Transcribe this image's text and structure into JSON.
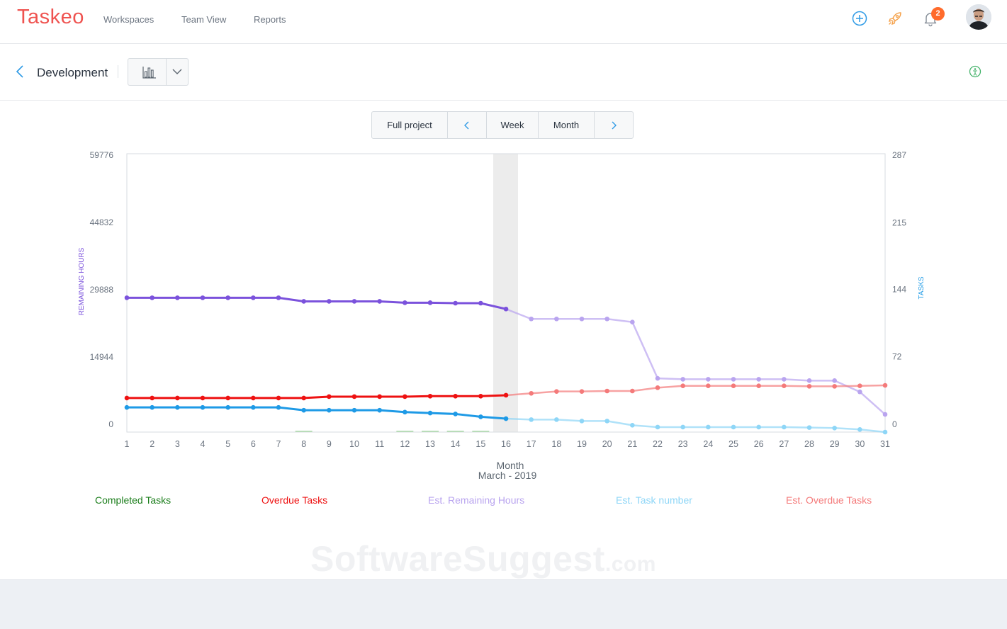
{
  "app": {
    "logo": "Taskeo",
    "nav": [
      "Workspaces",
      "Team View",
      "Reports"
    ],
    "notifications_count": "2"
  },
  "header": {
    "project_title": "Development"
  },
  "range": {
    "full": "Full project",
    "week": "Week",
    "month": "Month"
  },
  "watermark": {
    "main": "SoftwareSuggest",
    "suffix": ".com"
  },
  "colors": {
    "brand": "#ef5350",
    "remaining_hours": "#7b52dc",
    "overdue": "#ee1111",
    "tasks": "#1e9ae6",
    "completed": "#1a7d1a",
    "est_remaining": "#b9a4ef",
    "est_tasks": "#8ed6f7",
    "est_overdue": "#f47a7a",
    "highlight": "#ececec"
  },
  "chart_data": {
    "type": "line",
    "x": [
      1,
      2,
      3,
      4,
      5,
      6,
      7,
      8,
      9,
      10,
      11,
      12,
      13,
      14,
      15,
      16,
      17,
      18,
      19,
      20,
      21,
      22,
      23,
      24,
      25,
      26,
      27,
      28,
      29,
      30,
      31
    ],
    "xlabel": "Month",
    "xsublabel": "March - 2019",
    "left_axis": {
      "label": "REMAINING HOURS",
      "ticks": [
        0,
        14944,
        29888,
        44832,
        59776
      ],
      "range": [
        0,
        59776
      ]
    },
    "right_axis": {
      "label": "TASKS",
      "ticks": [
        0,
        72,
        144,
        215,
        287
      ],
      "range": [
        0,
        287
      ]
    },
    "highlight_day": 16,
    "actual_until": 16,
    "series": [
      {
        "name": "Est. Remaining Hours",
        "axis": "left",
        "values": [
          28100,
          28100,
          28100,
          28100,
          28100,
          28100,
          28100,
          27300,
          27300,
          27300,
          27300,
          27000,
          27000,
          26900,
          26900,
          25600,
          23400,
          23400,
          23400,
          23400,
          22700,
          10200,
          10000,
          10000,
          10000,
          10000,
          10000,
          9700,
          9700,
          7200,
          2200
        ]
      },
      {
        "name": "Overdue Tasks",
        "axis": "right",
        "values": [
          28,
          28,
          28,
          28,
          28,
          28,
          28,
          28,
          29.5,
          29.5,
          29.5,
          29.5,
          30,
          30,
          30,
          31,
          33,
          35,
          35,
          35.5,
          35.5,
          39,
          41,
          41,
          41,
          41,
          41,
          40.5,
          40.5,
          41,
          41.5
        ]
      },
      {
        "name": "Est. Task number",
        "axis": "right",
        "values": [
          18,
          18,
          18,
          18,
          18,
          18,
          18,
          15,
          15,
          15,
          15,
          13,
          12,
          11,
          8,
          6,
          5,
          5,
          3.5,
          3.5,
          -1,
          -3,
          -3,
          -3,
          -3,
          -3,
          -3,
          -3.5,
          -4,
          -5.5,
          -9
        ]
      },
      {
        "name": "Completed Tasks",
        "axis": "right",
        "type": "bar",
        "values": [
          0,
          0,
          0,
          0,
          0,
          0,
          0,
          1,
          0,
          0,
          0,
          1,
          1,
          1,
          1,
          0,
          0,
          0,
          0,
          0,
          0,
          0,
          0,
          0,
          0,
          0,
          0,
          0,
          0,
          0,
          0
        ]
      }
    ],
    "legend": [
      {
        "label": "Completed Tasks",
        "color": "#1a7d1a"
      },
      {
        "label": "Overdue Tasks",
        "color": "#ee1111"
      },
      {
        "label": "Est. Remaining Hours",
        "color": "#b9a4ef"
      },
      {
        "label": "Est. Task number",
        "color": "#8ed6f7"
      },
      {
        "label": "Est. Overdue Tasks",
        "color": "#f47a7a"
      }
    ]
  }
}
